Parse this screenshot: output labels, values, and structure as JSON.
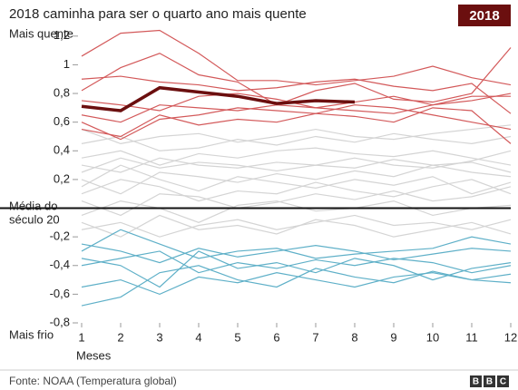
{
  "chart_data": {
    "type": "line",
    "subtitle": "2018 caminha para ser o quarto ano mais quente",
    "badge": "2018",
    "top_label": "Mais quente",
    "zero_label": [
      "Média do",
      "século 20"
    ],
    "bottom_label": "Mais frio",
    "xlabel": "Meses",
    "source": "Fonte: NOAA (Temperatura global)",
    "logo": [
      "B",
      "B",
      "C"
    ],
    "x": [
      1,
      2,
      3,
      4,
      5,
      6,
      7,
      8,
      9,
      10,
      11,
      12
    ],
    "xlim": [
      1,
      12
    ],
    "xticks": [
      1,
      2,
      3,
      4,
      5,
      6,
      7,
      8,
      9,
      10,
      11,
      12
    ],
    "ylim": [
      -0.8,
      1.3
    ],
    "yticks": [
      {
        "value": -0.8,
        "label": "-0,8"
      },
      {
        "value": -0.6,
        "label": "-0,6"
      },
      {
        "value": -0.4,
        "label": "-0,4"
      },
      {
        "value": -0.2,
        "label": "-0,2"
      },
      {
        "value": 0.2,
        "label": "0,2"
      },
      {
        "value": 0.4,
        "label": "0,4"
      },
      {
        "value": 0.6,
        "label": "0,6"
      },
      {
        "value": 0.8,
        "label": "0,8"
      },
      1,
      {
        "value": 1.2,
        "label": "1,2"
      }
    ],
    "zero_line": 0,
    "series": [
      {
        "color": "#d4d4d4",
        "values": [
          0.3,
          0.25,
          0.35,
          0.3,
          0.28,
          0.32,
          0.3,
          0.35,
          0.3,
          0.28,
          0.33,
          0.4
        ]
      },
      {
        "color": "#d4d4d4",
        "values": [
          0.1,
          0.2,
          0.15,
          0.05,
          0.12,
          0.1,
          0.18,
          0.12,
          0.08,
          0.15,
          0.2,
          0.1
        ]
      },
      {
        "color": "#d4d4d4",
        "values": [
          -0.05,
          0.05,
          0.0,
          -0.1,
          0.02,
          0.05,
          -0.02,
          0.0,
          0.05,
          -0.05,
          0.0,
          0.02
        ]
      },
      {
        "color": "#d4d4d4",
        "values": [
          0.45,
          0.5,
          0.4,
          0.42,
          0.48,
          0.44,
          0.5,
          0.46,
          0.52,
          0.48,
          0.45,
          0.5
        ]
      },
      {
        "color": "#d4d4d4",
        "values": [
          0.2,
          0.1,
          0.25,
          0.22,
          0.18,
          0.24,
          0.2,
          0.26,
          0.22,
          0.3,
          0.25,
          0.22
        ]
      },
      {
        "color": "#d4d4d4",
        "values": [
          -0.15,
          -0.1,
          -0.2,
          -0.12,
          -0.08,
          -0.15,
          -0.1,
          -0.05,
          -0.12,
          -0.1,
          -0.15,
          -0.08
        ]
      },
      {
        "color": "#d4d4d4",
        "values": [
          0.35,
          0.4,
          0.3,
          0.38,
          0.35,
          0.4,
          0.42,
          0.38,
          0.36,
          0.4,
          0.35,
          0.3
        ]
      },
      {
        "color": "#d4d4d4",
        "values": [
          0.05,
          -0.05,
          0.1,
          0.08,
          0.0,
          0.04,
          0.1,
          0.06,
          0.12,
          0.05,
          0.08,
          0.15
        ]
      },
      {
        "color": "#d4d4d4",
        "values": [
          0.15,
          0.3,
          0.2,
          0.12,
          0.22,
          0.18,
          0.14,
          0.2,
          0.16,
          0.22,
          0.1,
          0.18
        ]
      },
      {
        "color": "#d4d4d4",
        "values": [
          -0.1,
          -0.2,
          -0.05,
          -0.15,
          -0.12,
          -0.18,
          -0.08,
          -0.12,
          -0.2,
          -0.15,
          -0.1,
          -0.18
        ]
      },
      {
        "color": "#d4d4d4",
        "values": [
          0.55,
          0.45,
          0.5,
          0.52,
          0.46,
          0.5,
          0.55,
          0.5,
          0.48,
          0.52,
          0.55,
          0.58
        ]
      },
      {
        "color": "#d4d4d4",
        "values": [
          0.25,
          0.35,
          0.28,
          0.32,
          0.3,
          0.26,
          0.3,
          0.28,
          0.34,
          0.3,
          0.32,
          0.25
        ]
      },
      {
        "color": "#5fb0c8",
        "values": [
          -0.35,
          -0.4,
          -0.55,
          -0.3,
          -0.42,
          -0.38,
          -0.45,
          -0.35,
          -0.4,
          -0.5,
          -0.42,
          -0.38
        ]
      },
      {
        "color": "#5fb0c8",
        "values": [
          -0.55,
          -0.5,
          -0.6,
          -0.48,
          -0.52,
          -0.45,
          -0.5,
          -0.55,
          -0.48,
          -0.45,
          -0.5,
          -0.52
        ]
      },
      {
        "color": "#5fb0c8",
        "values": [
          -0.3,
          -0.15,
          -0.25,
          -0.35,
          -0.3,
          -0.28,
          -0.35,
          -0.32,
          -0.3,
          -0.28,
          -0.2,
          -0.25
        ]
      },
      {
        "color": "#5fb0c8",
        "values": [
          -0.68,
          -0.62,
          -0.45,
          -0.4,
          -0.5,
          -0.55,
          -0.42,
          -0.48,
          -0.52,
          -0.44,
          -0.5,
          -0.46
        ]
      },
      {
        "color": "#5fb0c8",
        "values": [
          -0.4,
          -0.35,
          -0.3,
          -0.45,
          -0.38,
          -0.42,
          -0.36,
          -0.4,
          -0.35,
          -0.38,
          -0.45,
          -0.4
        ]
      },
      {
        "color": "#5fb0c8",
        "values": [
          -0.25,
          -0.3,
          -0.38,
          -0.28,
          -0.34,
          -0.3,
          -0.26,
          -0.3,
          -0.36,
          -0.32,
          -0.28,
          -0.3
        ]
      },
      {
        "color": "#d3595a",
        "values": [
          1.06,
          1.22,
          1.24,
          1.08,
          0.89,
          0.89,
          0.86,
          0.89,
          0.92,
          0.99,
          0.91,
          0.86
        ]
      },
      {
        "color": "#d3595a",
        "values": [
          0.82,
          0.98,
          1.08,
          0.93,
          0.88,
          0.72,
          0.82,
          0.87,
          0.76,
          0.74,
          0.8,
          1.12
        ]
      },
      {
        "color": "#d3595a",
        "values": [
          0.6,
          0.48,
          0.62,
          0.65,
          0.7,
          0.68,
          0.66,
          0.72,
          0.7,
          0.65,
          0.6,
          0.55
        ]
      },
      {
        "color": "#d3595a",
        "values": [
          0.75,
          0.72,
          0.68,
          0.78,
          0.8,
          0.76,
          0.7,
          0.74,
          0.78,
          0.72,
          0.75,
          0.8
        ]
      },
      {
        "color": "#d3595a",
        "values": [
          0.9,
          0.92,
          0.88,
          0.86,
          0.82,
          0.84,
          0.88,
          0.9,
          0.85,
          0.82,
          0.87,
          0.66
        ]
      },
      {
        "color": "#d3595a",
        "values": [
          0.55,
          0.5,
          0.65,
          0.58,
          0.62,
          0.6,
          0.66,
          0.64,
          0.6,
          0.7,
          0.68,
          0.45
        ]
      },
      {
        "color": "#d3595a",
        "values": [
          0.65,
          0.6,
          0.72,
          0.7,
          0.68,
          0.72,
          0.7,
          0.68,
          0.66,
          0.72,
          0.78,
          0.78
        ]
      },
      {
        "color": "#6b0f0f",
        "values": [
          0.71,
          0.68,
          0.84,
          0.81,
          0.78,
          0.73,
          0.75,
          0.74,
          null,
          null,
          null,
          null
        ]
      }
    ]
  }
}
